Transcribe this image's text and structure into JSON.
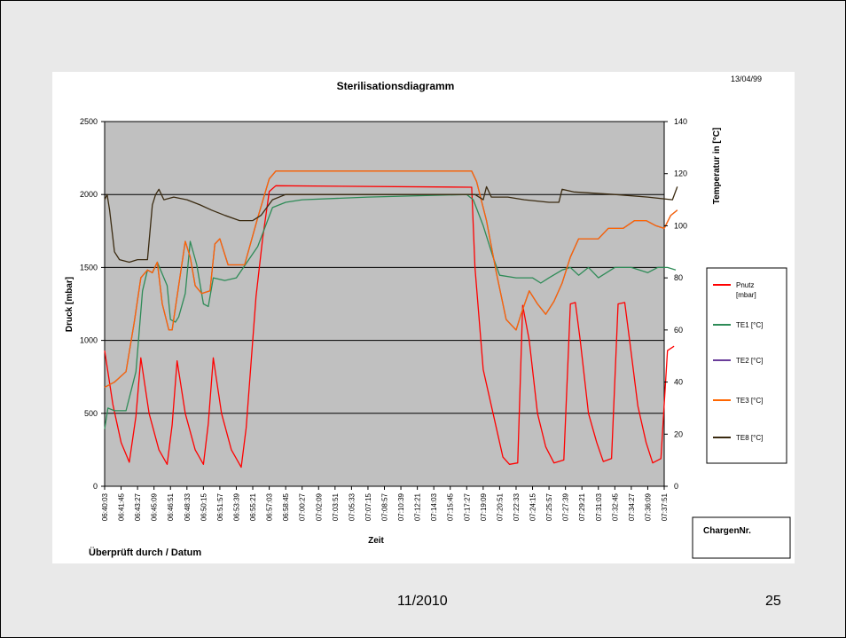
{
  "footer": {
    "date": "11/2010",
    "page": "25"
  },
  "chart_data": {
    "type": "line",
    "title": "Sterilisationsdiagramm",
    "date_label": "13/04/99",
    "xlabel": "Zeit",
    "ylabel": "Druck [mbar]",
    "y2label": "Temperatur in [°C]",
    "ylim": [
      0,
      2500
    ],
    "y2lim": [
      0,
      140
    ],
    "yticks": [
      0,
      500,
      1000,
      1500,
      2000,
      2500
    ],
    "y2ticks": [
      0,
      20,
      40,
      60,
      80,
      100,
      120,
      140
    ],
    "grid": "horizontal",
    "plot_background": "#c0c0c0",
    "legend_position": "right",
    "check_label": "Überprüft durch / Datum",
    "batch_label": "ChargenNr.",
    "x_ticks": [
      "06:40:03",
      "06:41:45",
      "06:43:27",
      "06:45:09",
      "06:46:51",
      "06:48:33",
      "06:50:15",
      "06:51:57",
      "06:53:39",
      "06:55:21",
      "06:57:03",
      "06:58:45",
      "07:00:27",
      "07:02:09",
      "07:03:51",
      "07:05:33",
      "07:07:15",
      "07:08:57",
      "07:10:39",
      "07:12:21",
      "07:14:03",
      "07:15:45",
      "07:17:27",
      "07:19:09",
      "07:20:51",
      "07:22:33",
      "07:24:15",
      "07:25:57",
      "07:27:39",
      "07:29:21",
      "07:31:03",
      "07:32:45",
      "07:34:27",
      "07:36:09",
      "07:37:51"
    ],
    "series": [
      {
        "name": "Pnutz [mbar]",
        "axis": "left",
        "color": "#ff0000",
        "points": [
          [
            0,
            930
          ],
          [
            0.5,
            560
          ],
          [
            1.0,
            300
          ],
          [
            1.5,
            165
          ],
          [
            1.9,
            480
          ],
          [
            2.2,
            880
          ],
          [
            2.7,
            500
          ],
          [
            3.3,
            250
          ],
          [
            3.8,
            150
          ],
          [
            4.1,
            420
          ],
          [
            4.4,
            860
          ],
          [
            4.9,
            500
          ],
          [
            5.5,
            250
          ],
          [
            6.0,
            150
          ],
          [
            6.3,
            430
          ],
          [
            6.6,
            880
          ],
          [
            7.1,
            500
          ],
          [
            7.7,
            250
          ],
          [
            8.3,
            130
          ],
          [
            8.6,
            400
          ],
          [
            9.2,
            1300
          ],
          [
            9.6,
            1700
          ],
          [
            10.0,
            2020
          ],
          [
            10.4,
            2060
          ],
          [
            22.3,
            2050
          ],
          [
            22.5,
            1500
          ],
          [
            23.0,
            800
          ],
          [
            23.6,
            500
          ],
          [
            24.2,
            200
          ],
          [
            24.6,
            150
          ],
          [
            25.1,
            160
          ],
          [
            25.4,
            1240
          ],
          [
            25.8,
            1000
          ],
          [
            26.3,
            500
          ],
          [
            26.8,
            270
          ],
          [
            27.3,
            160
          ],
          [
            27.9,
            180
          ],
          [
            28.3,
            1250
          ],
          [
            28.6,
            1260
          ],
          [
            28.9,
            1000
          ],
          [
            29.4,
            500
          ],
          [
            29.9,
            300
          ],
          [
            30.3,
            170
          ],
          [
            30.8,
            190
          ],
          [
            31.2,
            1250
          ],
          [
            31.6,
            1260
          ],
          [
            31.9,
            1000
          ],
          [
            32.4,
            550
          ],
          [
            32.9,
            300
          ],
          [
            33.3,
            160
          ],
          [
            33.8,
            190
          ],
          [
            34.2,
            930
          ],
          [
            34.6,
            960
          ]
        ]
      },
      {
        "name": "TE1 [°C]",
        "axis": "right",
        "color": "#2e8b57",
        "points": [
          [
            0,
            22
          ],
          [
            0.2,
            30
          ],
          [
            0.6,
            29
          ],
          [
            1.3,
            29
          ],
          [
            1.9,
            44
          ],
          [
            2.3,
            75
          ],
          [
            2.6,
            83
          ],
          [
            2.9,
            82
          ],
          [
            3.2,
            86
          ],
          [
            3.8,
            77
          ],
          [
            4.0,
            64
          ],
          [
            4.3,
            63
          ],
          [
            4.5,
            65
          ],
          [
            4.9,
            74
          ],
          [
            5.2,
            94
          ],
          [
            5.6,
            85
          ],
          [
            6.0,
            70
          ],
          [
            6.3,
            69
          ],
          [
            6.6,
            80
          ],
          [
            7.3,
            79
          ],
          [
            8.0,
            80
          ],
          [
            9.3,
            92
          ],
          [
            10.2,
            107
          ],
          [
            11.0,
            109
          ],
          [
            12.0,
            110
          ],
          [
            16.0,
            111
          ],
          [
            22.0,
            112
          ],
          [
            22.4,
            110
          ],
          [
            23.0,
            100
          ],
          [
            23.6,
            88
          ],
          [
            24.0,
            81
          ],
          [
            25.0,
            80
          ],
          [
            26.0,
            80
          ],
          [
            26.5,
            78
          ],
          [
            27.0,
            80
          ],
          [
            27.8,
            83
          ],
          [
            28.3,
            84
          ],
          [
            28.8,
            81
          ],
          [
            29.4,
            84
          ],
          [
            30.0,
            80
          ],
          [
            31.0,
            84
          ],
          [
            32.0,
            84
          ],
          [
            33.0,
            82
          ],
          [
            33.6,
            84
          ],
          [
            34.2,
            84
          ],
          [
            34.7,
            83
          ]
        ]
      },
      {
        "name": "TE2 [°C]",
        "axis": "right",
        "color": "#6a3d9a",
        "points": [
          [
            0,
            38
          ],
          [
            0.6,
            40
          ],
          [
            1.3,
            44
          ],
          [
            1.8,
            63
          ],
          [
            2.2,
            80
          ],
          [
            2.6,
            83
          ],
          [
            2.9,
            82
          ],
          [
            3.2,
            86
          ],
          [
            3.5,
            70
          ],
          [
            3.9,
            60
          ],
          [
            4.1,
            60
          ],
          [
            4.5,
            77
          ],
          [
            4.9,
            94
          ],
          [
            5.2,
            88
          ],
          [
            5.5,
            77
          ],
          [
            5.9,
            74
          ],
          [
            6.4,
            75
          ],
          [
            6.7,
            93
          ],
          [
            7.0,
            95
          ],
          [
            7.5,
            85
          ],
          [
            8.5,
            85
          ],
          [
            9.3,
            103
          ],
          [
            10.0,
            118
          ],
          [
            10.4,
            121
          ],
          [
            22.3,
            121
          ],
          [
            22.6,
            117
          ],
          [
            23.2,
            102
          ],
          [
            23.8,
            82
          ],
          [
            24.4,
            64
          ],
          [
            25.0,
            60
          ],
          [
            25.3,
            66
          ],
          [
            25.8,
            75
          ],
          [
            26.3,
            70
          ],
          [
            26.8,
            66
          ],
          [
            27.3,
            71
          ],
          [
            27.8,
            78
          ],
          [
            28.3,
            88
          ],
          [
            28.8,
            95
          ],
          [
            29.5,
            95
          ],
          [
            30.0,
            95
          ],
          [
            30.6,
            99
          ],
          [
            31.5,
            99
          ],
          [
            32.2,
            102
          ],
          [
            32.9,
            102
          ],
          [
            33.5,
            100
          ],
          [
            34.0,
            99
          ],
          [
            34.4,
            104
          ],
          [
            34.8,
            106
          ]
        ]
      },
      {
        "name": "TE3 [°C]",
        "axis": "right",
        "color": "#ff6600",
        "points": [
          [
            0,
            38
          ],
          [
            0.6,
            40
          ],
          [
            1.3,
            44
          ],
          [
            1.8,
            63
          ],
          [
            2.2,
            80
          ],
          [
            2.6,
            83
          ],
          [
            2.9,
            82
          ],
          [
            3.2,
            86
          ],
          [
            3.5,
            70
          ],
          [
            3.9,
            60
          ],
          [
            4.1,
            60
          ],
          [
            4.5,
            77
          ],
          [
            4.9,
            94
          ],
          [
            5.2,
            88
          ],
          [
            5.5,
            77
          ],
          [
            5.9,
            74
          ],
          [
            6.4,
            75
          ],
          [
            6.7,
            93
          ],
          [
            7.0,
            95
          ],
          [
            7.5,
            85
          ],
          [
            8.5,
            85
          ],
          [
            9.3,
            103
          ],
          [
            10.0,
            118
          ],
          [
            10.4,
            121
          ],
          [
            22.3,
            121
          ],
          [
            22.6,
            117
          ],
          [
            23.2,
            102
          ],
          [
            23.8,
            82
          ],
          [
            24.4,
            64
          ],
          [
            25.0,
            60
          ],
          [
            25.3,
            66
          ],
          [
            25.8,
            75
          ],
          [
            26.3,
            70
          ],
          [
            26.8,
            66
          ],
          [
            27.3,
            71
          ],
          [
            27.8,
            78
          ],
          [
            28.3,
            88
          ],
          [
            28.8,
            95
          ],
          [
            29.5,
            95
          ],
          [
            30.0,
            95
          ],
          [
            30.6,
            99
          ],
          [
            31.5,
            99
          ],
          [
            32.2,
            102
          ],
          [
            32.9,
            102
          ],
          [
            33.5,
            100
          ],
          [
            34.0,
            99
          ],
          [
            34.4,
            104
          ],
          [
            34.8,
            106
          ]
        ]
      },
      {
        "name": "TE8 [°C]",
        "axis": "right",
        "color": "#3a2a10",
        "points": [
          [
            0,
            110
          ],
          [
            0.15,
            112
          ],
          [
            0.3,
            106
          ],
          [
            0.6,
            90
          ],
          [
            0.9,
            87
          ],
          [
            1.5,
            86
          ],
          [
            2.0,
            87
          ],
          [
            2.6,
            87
          ],
          [
            2.9,
            108
          ],
          [
            3.1,
            112
          ],
          [
            3.3,
            114
          ],
          [
            3.6,
            110
          ],
          [
            4.2,
            111
          ],
          [
            5.0,
            110
          ],
          [
            5.8,
            108
          ],
          [
            6.5,
            106
          ],
          [
            7.3,
            104
          ],
          [
            8.2,
            102
          ],
          [
            9.0,
            102
          ],
          [
            9.5,
            104
          ],
          [
            10.2,
            110
          ],
          [
            11.0,
            112
          ],
          [
            16.0,
            112
          ],
          [
            22.0,
            112
          ],
          [
            22.5,
            112
          ],
          [
            23.0,
            110
          ],
          [
            23.2,
            115
          ],
          [
            23.5,
            111
          ],
          [
            24.5,
            111
          ],
          [
            25.5,
            110
          ],
          [
            27.0,
            109
          ],
          [
            27.6,
            109
          ],
          [
            27.8,
            114
          ],
          [
            28.5,
            113
          ],
          [
            31.0,
            112
          ],
          [
            33.0,
            111
          ],
          [
            34.5,
            110
          ],
          [
            34.8,
            115
          ]
        ]
      }
    ]
  }
}
